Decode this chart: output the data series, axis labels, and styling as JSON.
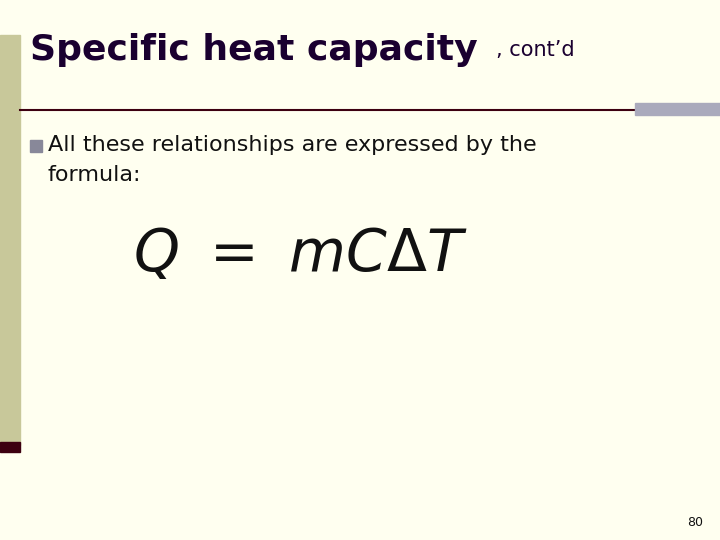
{
  "background_color": "#fffff0",
  "left_bar_color": "#c8c89a",
  "left_bar_bottom_color": "#3d0010",
  "title_main": "Specific heat capacity",
  "title_suffix": ", cont’d",
  "title_color": "#1a0030",
  "title_fontsize": 26,
  "title_suffix_fontsize": 15,
  "separator_line_color": "#3d0010",
  "separator_right_block_color": "#aaaabc",
  "bullet_color": "#888899",
  "bullet_fontsize": 16,
  "formula_fontsize": 42,
  "formula_color": "#111111",
  "page_number": "80",
  "page_number_fontsize": 9,
  "text_color": "#111111"
}
